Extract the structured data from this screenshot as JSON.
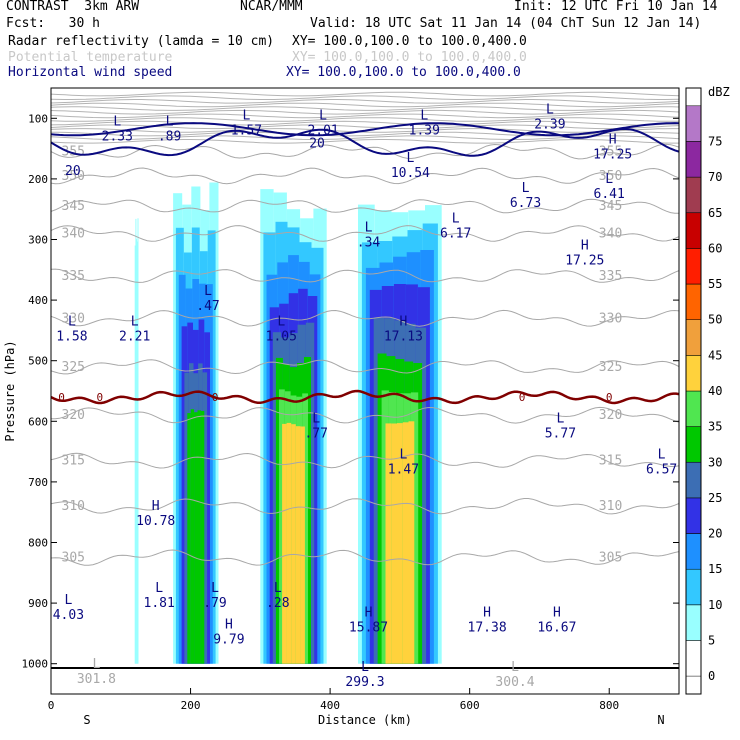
{
  "header": {
    "line1_left": "CONTRAST  3km ARW",
    "line1_mid": "NCAR/MMM",
    "line1_right": "Init: 12 UTC Fri 10 Jan 14",
    "line2_left": "Fcst:   30 h",
    "line2_right": "Valid: 18 UTC Sat 11 Jan 14 (04 ChT Sun 12 Jan 14)",
    "fields": [
      {
        "name": "Radar reflectivity (lamda = 10 cm)",
        "xy": "XY= 100.0,100.0 to 100.0,400.0"
      },
      {
        "name": "Potential temperature",
        "xy": "XY= 100.0,100.0 to 100.0,400.0"
      },
      {
        "name": "Horizontal wind speed",
        "xy": "XY= 100.0,100.0 to 100.0,400.0"
      }
    ]
  },
  "chart_data": {
    "type": "cross-section",
    "xlabel": "Distance (km)",
    "ylabel": "Pressure (hPa)",
    "xlim": [
      0,
      900
    ],
    "ylim": [
      1050,
      50
    ],
    "xticks": [
      0,
      200,
      400,
      600,
      800
    ],
    "yticks": [
      100,
      200,
      300,
      400,
      500,
      600,
      700,
      800,
      900,
      1000
    ],
    "left_end_label": "S",
    "right_end_label": "N",
    "colorbar": {
      "unit": "dBZ",
      "levels": [
        0,
        5,
        10,
        15,
        20,
        25,
        30,
        35,
        40,
        45,
        50,
        55,
        60,
        65,
        70,
        75
      ],
      "colors": [
        "#ffffff",
        "#99ffff",
        "#33c8ff",
        "#1e90ff",
        "#3232e6",
        "#3c6eb4",
        "#00c800",
        "#50e650",
        "#ffd23c",
        "#f0a03c",
        "#ff6400",
        "#ff1e00",
        "#c80000",
        "#a03c50",
        "#8c28a0",
        "#b478c8"
      ]
    },
    "reflectivity_columns": [
      {
        "x_from": 175,
        "x_to": 240,
        "top_p": 230,
        "peak_dbz": 30
      },
      {
        "x_from": 300,
        "x_to": 395,
        "top_p": 240,
        "peak_dbz": 40
      },
      {
        "x_from": 440,
        "x_to": 560,
        "top_p": 230,
        "peak_dbz": 40
      },
      {
        "x_from": 120,
        "x_to": 125,
        "top_p": 290,
        "peak_dbz": 5
      }
    ],
    "theta_contours": [
      {
        "label": "355",
        "p": 155
      },
      {
        "label": "350",
        "p": 195
      },
      {
        "label": "345",
        "p": 245
      },
      {
        "label": "340",
        "p": 290
      },
      {
        "label": "335",
        "p": 360
      },
      {
        "label": "330",
        "p": 430
      },
      {
        "label": "325",
        "p": 510
      },
      {
        "label": "320",
        "p": 590
      },
      {
        "label": "315",
        "p": 665
      },
      {
        "label": "310",
        "p": 740
      },
      {
        "label": "305",
        "p": 825
      }
    ],
    "freezing_level": {
      "label": "0",
      "p": 560
    },
    "wind_contours": [
      {
        "label": "20",
        "p": 140
      }
    ],
    "extrema": [
      {
        "type": "L",
        "value": "2.33",
        "x": 95,
        "p": 115
      },
      {
        "type": "L",
        "value": ".89",
        "x": 170,
        "p": 115
      },
      {
        "type": "L",
        "value": "1.57",
        "x": 280,
        "p": 105
      },
      {
        "type": "L",
        "value": "2.01",
        "x": 390,
        "p": 105
      },
      {
        "type": "L",
        "value": "1.39",
        "x": 535,
        "p": 105
      },
      {
        "type": "L",
        "value": "2.39",
        "x": 715,
        "p": 95
      },
      {
        "type": "H",
        "value": "17.25",
        "x": 805,
        "p": 145
      },
      {
        "type": "L",
        "value": "10.54",
        "x": 515,
        "p": 175
      },
      {
        "type": "L",
        "value": "6.73",
        "x": 680,
        "p": 225
      },
      {
        "type": "L",
        "value": "6.41",
        "x": 800,
        "p": 210
      },
      {
        "type": "L",
        "value": "6.17",
        "x": 580,
        "p": 275
      },
      {
        "type": "L",
        "value": ".34",
        "x": 455,
        "p": 290
      },
      {
        "type": "H",
        "value": "17.25",
        "x": 765,
        "p": 320
      },
      {
        "type": "L",
        "value": ".47",
        "x": 225,
        "p": 395
      },
      {
        "type": "L",
        "value": "1.58",
        "x": 30,
        "p": 445
      },
      {
        "type": "L",
        "value": "2.21",
        "x": 120,
        "p": 445
      },
      {
        "type": "L",
        "value": "1.05",
        "x": 330,
        "p": 445
      },
      {
        "type": "H",
        "value": "17.13",
        "x": 505,
        "p": 445
      },
      {
        "type": "L",
        "value": ".77",
        "x": 380,
        "p": 605
      },
      {
        "type": "L",
        "value": "5.77",
        "x": 730,
        "p": 605
      },
      {
        "type": "L",
        "value": "1.47",
        "x": 505,
        "p": 665
      },
      {
        "type": "L",
        "value": "6.57",
        "x": 875,
        "p": 665
      },
      {
        "type": "H",
        "value": "10.78",
        "x": 150,
        "p": 750
      },
      {
        "type": "L",
        "value": "1.81",
        "x": 155,
        "p": 885
      },
      {
        "type": "L",
        "value": ".79",
        "x": 235,
        "p": 885
      },
      {
        "type": "L",
        "value": ".28",
        "x": 325,
        "p": 885
      },
      {
        "type": "L",
        "value": "4.03",
        "x": 25,
        "p": 905
      },
      {
        "type": "H",
        "value": "9.79",
        "x": 255,
        "p": 945
      },
      {
        "type": "H",
        "value": "15.87",
        "x": 455,
        "p": 925
      },
      {
        "type": "H",
        "value": "17.38",
        "x": 625,
        "p": 925
      },
      {
        "type": "H",
        "value": "16.67",
        "x": 725,
        "p": 925
      },
      {
        "type": "L",
        "value": "301.8",
        "x": 65,
        "p": 1010
      },
      {
        "type": "L",
        "value": "299.3",
        "x": 450,
        "p": 1015
      },
      {
        "type": "L",
        "value": "300.4",
        "x": 665,
        "p": 1015
      }
    ]
  }
}
